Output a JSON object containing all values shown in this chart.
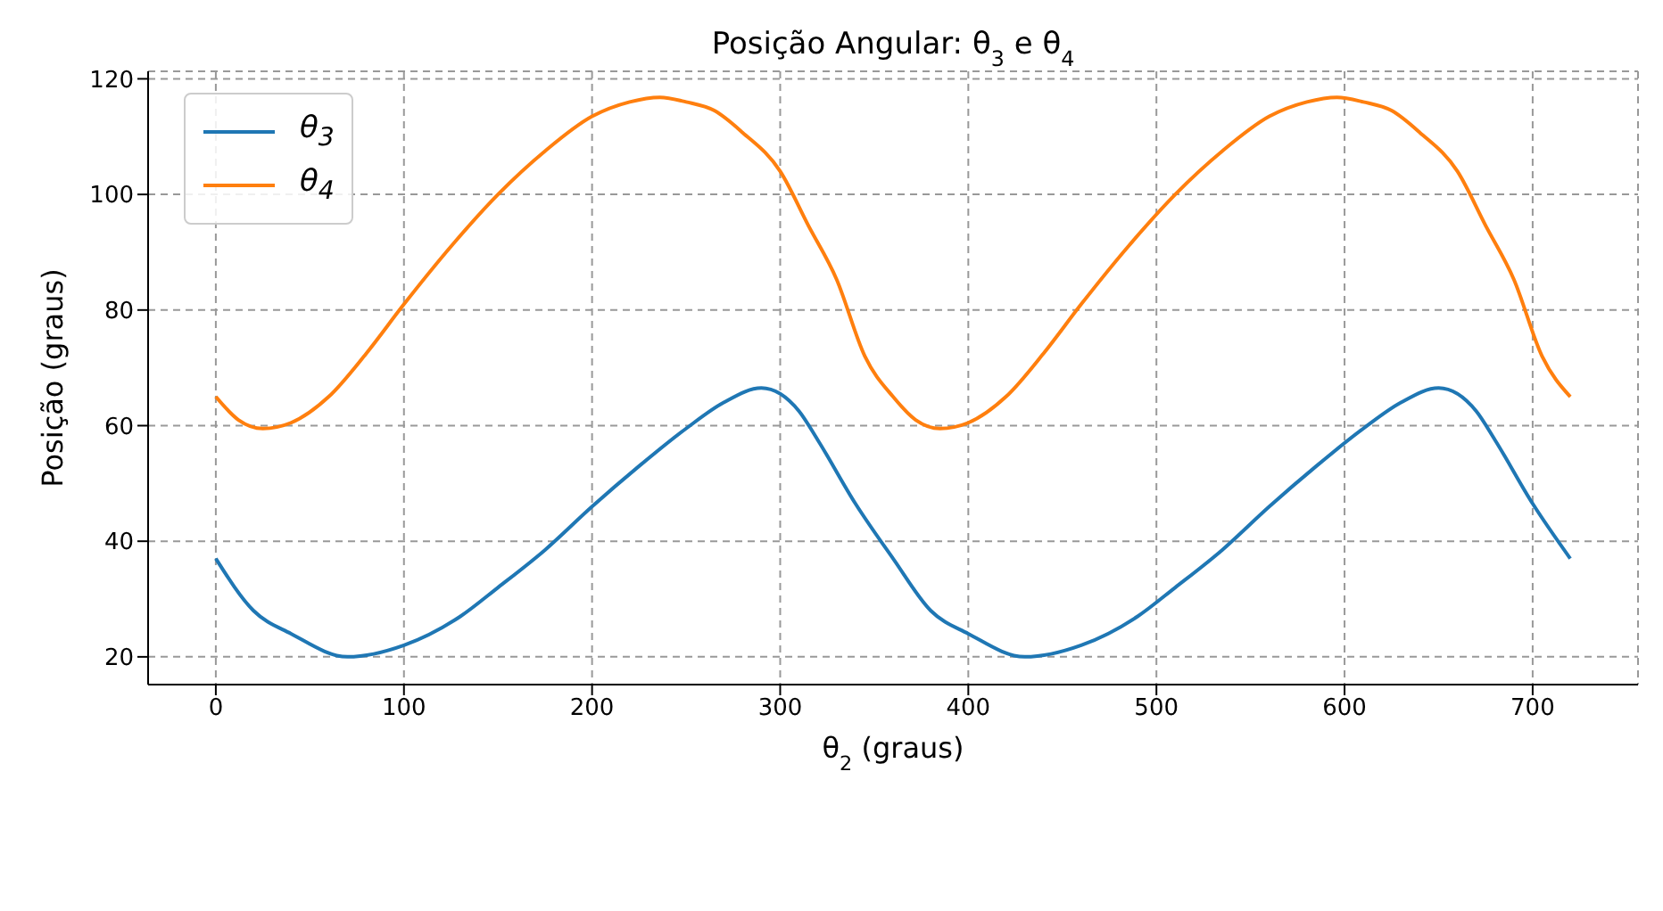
{
  "chart_data": {
    "type": "line",
    "title": "Posição Angular: θ$_{3}$ e θ$_{4}$",
    "xlabel": "θ$_{2}$ (graus)",
    "ylabel": "Posição (graus)",
    "xlim": [
      -36,
      756
    ],
    "xticks": [
      0,
      100,
      200,
      300,
      400,
      500,
      600,
      700
    ],
    "ylim": [
      15.2,
      121.3
    ],
    "yticks": [
      20,
      40,
      60,
      80,
      100,
      120
    ],
    "grid": true,
    "legend": "top left",
    "marker": "none",
    "line_style": "solid",
    "series": [
      {
        "name": "θ$_{3}$",
        "color": "#1f77b4",
        "x": [
          0,
          20,
          40,
          70,
          100,
          130,
          150,
          175,
          200,
          225,
          250,
          270,
          290,
          310,
          320,
          340,
          360,
          380,
          400,
          430,
          460,
          490,
          510,
          535,
          560,
          585,
          610,
          630,
          650,
          670,
          680,
          700,
          720
        ],
        "values": [
          37,
          28,
          24,
          20,
          22,
          27,
          32,
          38.5,
          46,
          53,
          59.5,
          64,
          66.5,
          62.5,
          57.5,
          46.5,
          37,
          28,
          24,
          20,
          22,
          27,
          32,
          38.5,
          46,
          53,
          59.5,
          64,
          66.5,
          62.5,
          57.5,
          46.5,
          37
        ]
      },
      {
        "name": "θ$_{4}$",
        "color": "#ff7f0e",
        "x": [
          0,
          12,
          25,
          40,
          60,
          80,
          100,
          125,
          150,
          175,
          200,
          220,
          236,
          250,
          265,
          280,
          300,
          315,
          330,
          345,
          360,
          372,
          385,
          400,
          420,
          440,
          460,
          485,
          510,
          535,
          560,
          580,
          596,
          610,
          625,
          640,
          660,
          675,
          690,
          705,
          720
        ],
        "values": [
          65,
          61,
          59.5,
          60.5,
          65,
          72.5,
          81,
          91,
          100,
          107.5,
          113.5,
          116,
          116.8,
          116,
          114.5,
          110.7,
          104,
          94.6,
          85.3,
          72,
          65,
          61,
          59.5,
          60.5,
          65,
          72.5,
          81,
          91,
          100,
          107.5,
          113.5,
          116,
          116.8,
          116,
          114.5,
          110.7,
          104,
          94.6,
          85.3,
          72,
          65
        ]
      }
    ]
  }
}
